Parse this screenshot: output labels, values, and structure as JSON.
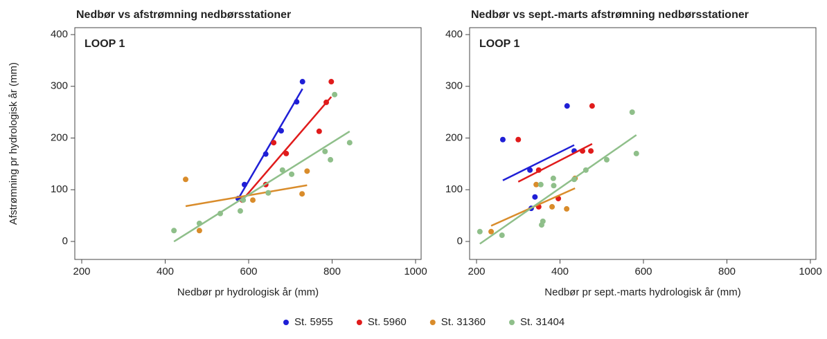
{
  "chart_data": [
    {
      "type": "scatter",
      "title": "Nedbør vs afstrømning nedbørsstationer",
      "annotation": "LOOP 1",
      "x_label": "Nedbør pr hydrologisk år (mm)",
      "y_label": "Afstrømning pr hydrologisk år (mm)",
      "xlim": [
        200,
        1000
      ],
      "xticks": [
        200,
        400,
        600,
        800,
        1000
      ],
      "ylim": [
        0,
        400
      ],
      "yticks": [
        0,
        100,
        200,
        300,
        400
      ],
      "trend_lines": true,
      "series": [
        {
          "name": "St. 5955",
          "color": "#1f1fd6",
          "x": [
            575,
            590,
            641,
            678,
            715,
            729
          ],
          "values": [
            83,
            110,
            169,
            214,
            270,
            309
          ]
        },
        {
          "name": "St. 5960",
          "color": "#e01b1b",
          "x": [
            585,
            641,
            660,
            690,
            769,
            786,
            798
          ],
          "values": [
            80,
            110,
            191,
            170,
            213,
            269,
            309
          ]
        },
        {
          "name": "St. 31360",
          "color": "#d98c2b",
          "x": [
            449,
            482,
            610,
            647,
            728,
            740
          ],
          "values": [
            120,
            21,
            80,
            94,
            92,
            136
          ]
        },
        {
          "name": "St. 31404",
          "color": "#8fbf8a",
          "x": [
            421,
            482,
            532,
            580,
            587,
            647,
            681,
            703,
            783,
            796,
            806,
            842
          ],
          "values": [
            21,
            35,
            54,
            59,
            80,
            94,
            138,
            130,
            174,
            158,
            284,
            191
          ]
        }
      ]
    },
    {
      "type": "scatter",
      "title": "Nedbør vs sept.-marts afstrømning nedbørsstationer",
      "annotation": "LOOP 1",
      "x_label": "Nedbør pr sept.-marts hydrologisk år (mm)",
      "xlim": [
        200,
        1000
      ],
      "xticks": [
        200,
        400,
        600,
        800,
        1000
      ],
      "ylim": [
        0,
        400
      ],
      "yticks": [
        0,
        100,
        200,
        300,
        400
      ],
      "trend_lines": true,
      "series": [
        {
          "color": "#1f1fd6",
          "x": [
            263,
            328,
            331,
            340,
            417,
            434
          ],
          "values": [
            197,
            138,
            64,
            86,
            262,
            175
          ]
        },
        {
          "color": "#e01b1b",
          "x": [
            300,
            349,
            349,
            396,
            454,
            474,
            477
          ],
          "values": [
            197,
            138,
            67,
            83,
            175,
            175,
            262
          ]
        },
        {
          "color": "#d98c2b",
          "x": [
            235,
            343,
            381,
            416,
            436
          ],
          "values": [
            19,
            110,
            67,
            63,
            122
          ]
        },
        {
          "color": "#8fbf8a",
          "x": [
            208,
            261,
            354,
            356,
            359,
            384,
            385,
            434,
            462,
            512,
            573,
            583
          ],
          "values": [
            19,
            12,
            110,
            32,
            39,
            122,
            108,
            120,
            138,
            158,
            250,
            170
          ]
        }
      ]
    }
  ]
}
